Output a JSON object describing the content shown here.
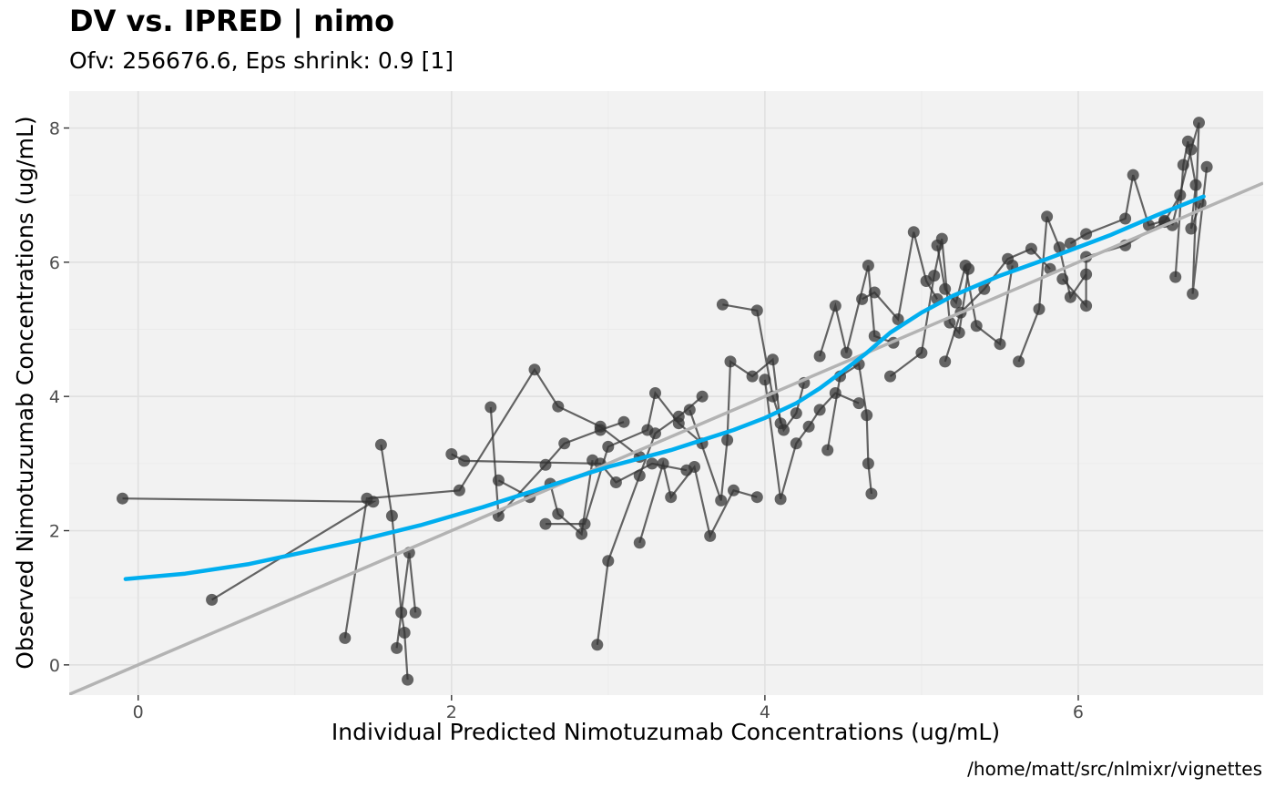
{
  "chart_data": {
    "type": "scatter",
    "title": "DV vs. IPRED | nimo",
    "subtitle": "Ofv: 256676.6, Eps shrink: 0.9 [1]",
    "xlabel": "Individual Predicted Nimotuzumab Concentrations (ug/mL)",
    "ylabel": "Observed Nimotuzumab Concentrations (ug/mL)",
    "caption": "/home/matt/src/nlmixr/vignettes",
    "xlim": [
      -0.44,
      7.18
    ],
    "ylim": [
      -0.45,
      8.55
    ],
    "x_ticks": [
      0,
      2,
      4,
      6
    ],
    "y_ticks": [
      0,
      2,
      4,
      6,
      8
    ],
    "grid": true,
    "colors": {
      "panel": "#f2f2f2",
      "grid_major": "#e0e0e0",
      "grid_minor": "#ebebeb",
      "points": "#333333",
      "lines": "#333333",
      "smooth": "#00aeef",
      "identity": "#b3b3b3"
    },
    "identity_line": {
      "slope": 1,
      "intercept": 0
    },
    "smooth": [
      [
        -0.08,
        1.28
      ],
      [
        0.3,
        1.36
      ],
      [
        0.7,
        1.5
      ],
      [
        1.0,
        1.65
      ],
      [
        1.4,
        1.85
      ],
      [
        1.8,
        2.08
      ],
      [
        2.2,
        2.35
      ],
      [
        2.6,
        2.65
      ],
      [
        3.0,
        2.95
      ],
      [
        3.4,
        3.2
      ],
      [
        3.8,
        3.5
      ],
      [
        4.0,
        3.68
      ],
      [
        4.2,
        3.9
      ],
      [
        4.35,
        4.12
      ],
      [
        4.5,
        4.38
      ],
      [
        4.65,
        4.65
      ],
      [
        4.8,
        4.95
      ],
      [
        5.0,
        5.25
      ],
      [
        5.2,
        5.5
      ],
      [
        5.5,
        5.8
      ],
      [
        5.8,
        6.05
      ],
      [
        6.2,
        6.4
      ],
      [
        6.5,
        6.7
      ],
      [
        6.8,
        6.98
      ]
    ],
    "individuals": [
      [
        [
          -0.1,
          2.48
        ],
        [
          1.5,
          2.43
        ],
        [
          0.47,
          0.97
        ]
      ],
      [
        [
          1.55,
          3.28
        ],
        [
          1.62,
          2.22
        ],
        [
          1.68,
          0.78
        ],
        [
          1.7,
          0.48
        ],
        [
          1.72,
          -0.22
        ]
      ],
      [
        [
          1.32,
          0.4
        ],
        [
          1.46,
          2.48
        ],
        [
          2.05,
          2.6
        ],
        [
          2.53,
          4.4
        ],
        [
          2.68,
          3.85
        ],
        [
          2.95,
          3.55
        ],
        [
          3.2,
          3.1
        ]
      ],
      [
        [
          2.25,
          3.84
        ],
        [
          2.3,
          2.22
        ],
        [
          2.6,
          2.98
        ],
        [
          2.72,
          3.3
        ],
        [
          2.95,
          3.5
        ],
        [
          3.1,
          3.62
        ]
      ],
      [
        [
          2.0,
          3.14
        ],
        [
          2.08,
          3.04
        ],
        [
          2.95,
          3.0
        ],
        [
          3.05,
          2.72
        ],
        [
          3.28,
          3.0
        ],
        [
          3.5,
          2.9
        ]
      ],
      [
        [
          1.65,
          0.25
        ],
        [
          1.73,
          1.67
        ],
        [
          1.77,
          0.78
        ]
      ],
      [
        [
          2.3,
          2.75
        ],
        [
          2.5,
          2.5
        ],
        [
          2.63,
          2.7
        ],
        [
          2.68,
          2.25
        ],
        [
          2.83,
          1.95
        ],
        [
          2.9,
          3.05
        ]
      ],
      [
        [
          2.93,
          0.3
        ],
        [
          3.0,
          1.55
        ],
        [
          3.2,
          2.82
        ],
        [
          3.3,
          3.45
        ],
        [
          3.45,
          3.7
        ],
        [
          3.6,
          4.0
        ]
      ],
      [
        [
          2.6,
          2.1
        ],
        [
          2.85,
          2.1
        ],
        [
          3.0,
          3.25
        ],
        [
          3.25,
          3.5
        ],
        [
          3.3,
          4.05
        ],
        [
          3.45,
          3.6
        ],
        [
          3.6,
          3.3
        ]
      ],
      [
        [
          3.2,
          1.82
        ],
        [
          3.35,
          3.0
        ],
        [
          3.4,
          2.5
        ],
        [
          3.55,
          2.95
        ],
        [
          3.65,
          1.92
        ],
        [
          3.8,
          2.6
        ],
        [
          3.95,
          2.5
        ]
      ],
      [
        [
          3.52,
          3.8
        ],
        [
          3.72,
          2.45
        ],
        [
          3.76,
          3.35
        ],
        [
          3.78,
          4.52
        ],
        [
          3.92,
          4.3
        ],
        [
          4.05,
          4.55
        ],
        [
          4.1,
          3.6
        ]
      ],
      [
        [
          3.73,
          5.37
        ],
        [
          3.95,
          5.28
        ],
        [
          4.05,
          4.0
        ],
        [
          4.12,
          3.5
        ],
        [
          4.2,
          3.75
        ],
        [
          4.25,
          4.2
        ]
      ],
      [
        [
          4.0,
          4.25
        ],
        [
          4.1,
          2.47
        ],
        [
          4.2,
          3.3
        ],
        [
          4.28,
          3.55
        ],
        [
          4.35,
          3.8
        ],
        [
          4.45,
          4.05
        ],
        [
          4.6,
          3.9
        ]
      ],
      [
        [
          4.4,
          3.2
        ],
        [
          4.48,
          4.3
        ],
        [
          4.6,
          4.48
        ],
        [
          4.65,
          3.72
        ],
        [
          4.66,
          3.0
        ],
        [
          4.68,
          2.55
        ]
      ],
      [
        [
          4.35,
          4.6
        ],
        [
          4.45,
          5.35
        ],
        [
          4.52,
          4.65
        ],
        [
          4.66,
          5.95
        ],
        [
          4.7,
          4.9
        ],
        [
          4.82,
          4.8
        ]
      ],
      [
        [
          4.62,
          5.45
        ],
        [
          4.7,
          5.55
        ],
        [
          4.85,
          5.15
        ],
        [
          4.95,
          6.45
        ],
        [
          5.03,
          5.72
        ],
        [
          5.1,
          5.45
        ]
      ],
      [
        [
          4.8,
          4.3
        ],
        [
          5.0,
          4.65
        ],
        [
          5.08,
          5.8
        ],
        [
          5.13,
          6.35
        ],
        [
          5.18,
          5.1
        ],
        [
          5.24,
          4.95
        ],
        [
          5.3,
          5.9
        ]
      ],
      [
        [
          5.1,
          6.25
        ],
        [
          5.15,
          5.6
        ],
        [
          5.22,
          5.4
        ],
        [
          5.28,
          5.95
        ],
        [
          5.35,
          5.05
        ],
        [
          5.5,
          4.78
        ],
        [
          5.58,
          5.95
        ]
      ],
      [
        [
          5.15,
          4.52
        ],
        [
          5.25,
          5.25
        ],
        [
          5.4,
          5.6
        ],
        [
          5.55,
          6.05
        ],
        [
          5.7,
          6.2
        ],
        [
          5.82,
          5.9
        ]
      ],
      [
        [
          5.62,
          4.52
        ],
        [
          5.75,
          5.3
        ],
        [
          5.8,
          6.68
        ],
        [
          5.88,
          6.22
        ],
        [
          5.95,
          5.48
        ],
        [
          6.05,
          5.82
        ]
      ],
      [
        [
          5.95,
          6.28
        ],
        [
          6.05,
          6.42
        ],
        [
          6.3,
          6.65
        ],
        [
          6.35,
          7.3
        ],
        [
          6.45,
          6.55
        ],
        [
          6.55,
          6.62
        ]
      ],
      [
        [
          5.9,
          5.75
        ],
        [
          6.05,
          5.35
        ],
        [
          6.05,
          6.08
        ],
        [
          6.3,
          6.25
        ],
        [
          6.55,
          6.6
        ],
        [
          6.65,
          7.0
        ]
      ],
      [
        [
          6.62,
          5.78
        ],
        [
          6.67,
          7.45
        ],
        [
          6.7,
          7.8
        ],
        [
          6.75,
          7.15
        ],
        [
          6.72,
          6.5
        ],
        [
          6.78,
          6.88
        ]
      ],
      [
        [
          6.6,
          6.55
        ],
        [
          6.72,
          7.68
        ],
        [
          6.77,
          8.08
        ],
        [
          6.73,
          5.53
        ],
        [
          6.82,
          7.42
        ]
      ]
    ]
  }
}
